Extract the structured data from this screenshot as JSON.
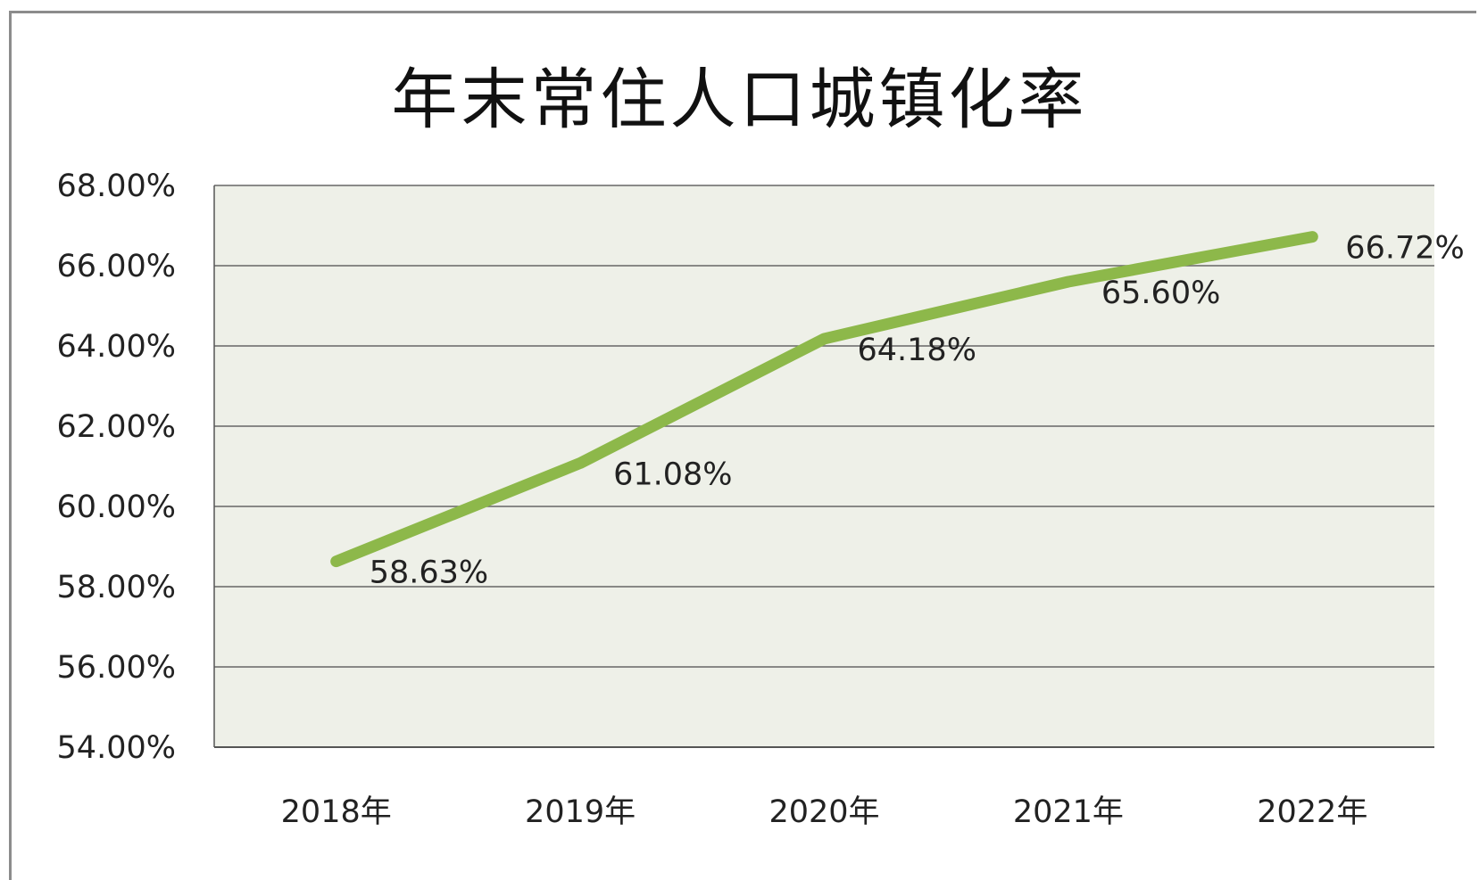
{
  "chart_data": {
    "type": "line",
    "title": "年末常住人口城镇化率",
    "categories": [
      "2018年",
      "2019年",
      "2020年",
      "2021年",
      "2022年"
    ],
    "series": [
      {
        "values": [
          58.63,
          61.08,
          64.18,
          65.6,
          66.72
        ],
        "color": "#8db84a"
      }
    ],
    "data_labels": [
      "58.63%",
      "61.08%",
      "64.18%",
      "65.60%",
      "66.72%"
    ],
    "y_ticks": [
      "54.00%",
      "56.00%",
      "58.00%",
      "60.00%",
      "62.00%",
      "64.00%",
      "66.00%",
      "68.00%"
    ],
    "ylim": [
      54,
      68
    ],
    "grid": true,
    "plot_background": "#eef0e8",
    "gridline_color": "#666666",
    "legend": "none"
  }
}
